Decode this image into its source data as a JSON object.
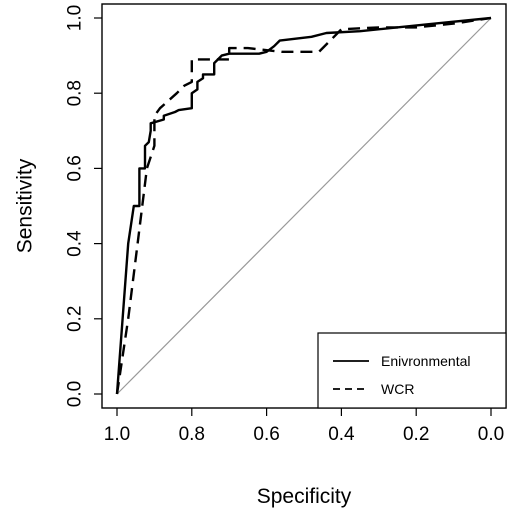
{
  "chart_data": {
    "type": "line",
    "title": "",
    "xlabel": "Specificity",
    "ylabel": "Sensitivity",
    "xlim": [
      1.0,
      0.0
    ],
    "ylim": [
      0.0,
      1.0
    ],
    "x_reversed": true,
    "x_ticks": [
      "1.0",
      "0.8",
      "0.6",
      "0.4",
      "0.2",
      "0.0"
    ],
    "y_ticks": [
      "0.0",
      "0.2",
      "0.4",
      "0.6",
      "0.8",
      "1.0"
    ],
    "grid": false,
    "legend_position": "bottom-right",
    "reference_line": {
      "from": [
        1.0,
        0.0
      ],
      "to": [
        0.0,
        1.0
      ],
      "color": "#999999"
    },
    "series": [
      {
        "name": "Enivronmental",
        "style": "solid",
        "color": "#000000",
        "specificity": [
          1.0,
          0.985,
          0.97,
          0.955,
          0.94,
          0.94,
          0.925,
          0.925,
          0.915,
          0.91,
          0.91,
          0.875,
          0.875,
          0.845,
          0.835,
          0.8,
          0.8,
          0.785,
          0.785,
          0.77,
          0.77,
          0.74,
          0.74,
          0.72,
          0.7,
          0.62,
          0.6,
          0.58,
          0.565,
          0.48,
          0.44,
          0.35,
          0.15,
          0.0
        ],
        "sensitivity": [
          0.0,
          0.2,
          0.4,
          0.5,
          0.5,
          0.6,
          0.6,
          0.66,
          0.67,
          0.7,
          0.72,
          0.73,
          0.74,
          0.75,
          0.755,
          0.76,
          0.8,
          0.81,
          0.83,
          0.84,
          0.85,
          0.85,
          0.88,
          0.9,
          0.905,
          0.905,
          0.91,
          0.925,
          0.94,
          0.95,
          0.96,
          0.965,
          0.985,
          1.0
        ]
      },
      {
        "name": "WCR",
        "style": "dashed",
        "color": "#000000",
        "specificity": [
          1.0,
          0.97,
          0.945,
          0.92,
          0.9,
          0.9,
          0.885,
          0.84,
          0.82,
          0.8,
          0.8,
          0.74,
          0.7,
          0.7,
          0.65,
          0.56,
          0.46,
          0.4,
          0.3,
          0.2,
          0.1,
          0.0
        ],
        "sensitivity": [
          0.0,
          0.2,
          0.4,
          0.6,
          0.66,
          0.74,
          0.76,
          0.8,
          0.82,
          0.83,
          0.89,
          0.89,
          0.89,
          0.92,
          0.92,
          0.91,
          0.91,
          0.97,
          0.975,
          0.975,
          0.985,
          1.0
        ]
      }
    ]
  }
}
